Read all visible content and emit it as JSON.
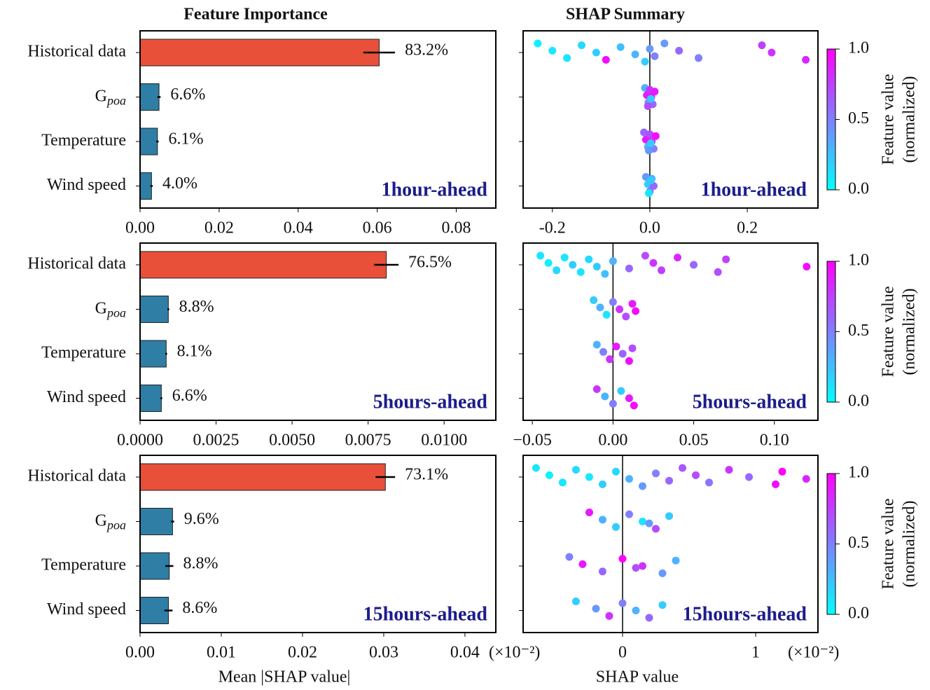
{
  "chart_data": [
    {
      "type": "bar",
      "title": "Feature Importance",
      "categories": [
        "Historical data",
        {
          "text": "G",
          "subscript": "poa"
        },
        "Temperature",
        "Wind speed"
      ],
      "values": [
        0.0605,
        0.0048,
        0.0044,
        0.0029
      ],
      "errors": [
        0.004,
        0.0004,
        0.0003,
        0.0003
      ],
      "share_labels": [
        "83.2%",
        "6.6%",
        "6.1%",
        "4.0%"
      ],
      "colors": [
        "#e8503a",
        "#2e7ea6",
        "#2e7ea6",
        "#2e7ea6"
      ],
      "xlim": [
        0,
        0.09
      ],
      "xticks": [
        {
          "value": 0,
          "label": "0.00"
        },
        0.02,
        0.04,
        0.06,
        0.08
      ],
      "annotation": "1hour-ahead"
    },
    {
      "type": "scatter",
      "title": "SHAP Summary",
      "groups": [
        {
          "x": [
            -0.23,
            -0.2,
            -0.17,
            -0.14,
            -0.11,
            -0.09,
            -0.06,
            -0.03,
            -0.01,
            0.0,
            0.01,
            0.03,
            0.06,
            0.1,
            0.23,
            0.25,
            0.32
          ],
          "feature_value": [
            0.05,
            0.1,
            0.1,
            0.15,
            0.2,
            0.95,
            0.25,
            0.3,
            0.2,
            0.4,
            0.5,
            0.4,
            0.6,
            0.5,
            0.75,
            0.8,
            0.85
          ]
        },
        {
          "x": [
            -0.01,
            -0.006,
            -0.003,
            0,
            0.003,
            0.006,
            0.01,
            0.002,
            -0.004
          ],
          "feature_value": [
            0.3,
            0.9,
            0.4,
            0.8,
            0.95,
            0.6,
            0.9,
            0.2,
            0.7
          ]
        },
        {
          "x": [
            -0.012,
            -0.008,
            -0.004,
            0,
            0.004,
            0.008,
            0.012,
            0.002,
            -0.002
          ],
          "feature_value": [
            0.6,
            0.9,
            0.3,
            0.7,
            0.8,
            0.5,
            0.95,
            0.2,
            0.4
          ]
        },
        {
          "x": [
            -0.008,
            -0.004,
            0,
            0.004,
            0.008,
            -0.002,
            0.002
          ],
          "feature_value": [
            0.4,
            0.2,
            0.5,
            0.3,
            0.6,
            0.1,
            0.2
          ]
        }
      ],
      "xlim": [
        -0.26,
        0.345
      ],
      "xticks": [
        -0.2,
        {
          "value": 0,
          "label": "0.0"
        },
        0.2
      ],
      "colorbar": {
        "lim": [
          0,
          1
        ],
        "ticks": [
          {
            "value": 0,
            "label": "0.0"
          },
          0.5,
          {
            "value": 1,
            "label": "1.0"
          }
        ],
        "label": [
          "Feature value",
          "(normalized)"
        ]
      },
      "annotation": "1hour-ahead"
    },
    {
      "type": "bar",
      "categories": [
        "Historical data",
        {
          "text": "G",
          "subscript": "poa"
        },
        "Temperature",
        "Wind speed"
      ],
      "values": [
        0.0081,
        0.00093,
        0.00086,
        0.0007
      ],
      "errors": [
        0.0004,
        3e-05,
        3e-05,
        3e-05
      ],
      "share_labels": [
        "76.5%",
        "8.8%",
        "8.1%",
        "6.6%"
      ],
      "colors": [
        "#e8503a",
        "#2e7ea6",
        "#2e7ea6",
        "#2e7ea6"
      ],
      "xlim": [
        0,
        0.0117
      ],
      "xticks": [
        {
          "value": 0,
          "label": "0.0000"
        },
        0.0025,
        {
          "value": 0.005,
          "label": "0.0050"
        },
        0.0075,
        {
          "value": 0.01,
          "label": "0.0100"
        }
      ],
      "annotation": "5hours-ahead"
    },
    {
      "type": "scatter",
      "groups": [
        {
          "x": [
            -0.045,
            -0.04,
            -0.035,
            -0.03,
            -0.025,
            -0.02,
            -0.015,
            -0.01,
            -0.005,
            0,
            0.01,
            0.02,
            0.025,
            0.03,
            0.04,
            0.05,
            0.065,
            0.07,
            0.12
          ],
          "feature_value": [
            0.1,
            0.05,
            0.15,
            0.1,
            0.2,
            0.1,
            0.15,
            0.2,
            0.25,
            0.3,
            0.6,
            0.7,
            0.8,
            0.75,
            0.85,
            0.6,
            0.7,
            0.75,
            0.95
          ]
        },
        {
          "x": [
            -0.012,
            -0.008,
            -0.004,
            0,
            0.004,
            0.008,
            0.012,
            0.014
          ],
          "feature_value": [
            0.2,
            0.3,
            0.1,
            0.5,
            0.8,
            0.7,
            0.9,
            0.95
          ]
        },
        {
          "x": [
            -0.01,
            -0.006,
            -0.002,
            0.002,
            0.006,
            0.01,
            0.012
          ],
          "feature_value": [
            0.3,
            0.5,
            0.8,
            0.9,
            0.6,
            0.95,
            0.7
          ]
        },
        {
          "x": [
            -0.01,
            -0.005,
            0,
            0.005,
            0.01,
            0.013
          ],
          "feature_value": [
            0.8,
            0.3,
            0.5,
            0.2,
            0.9,
            0.95
          ]
        }
      ],
      "xlim": [
        -0.0557,
        0.127
      ],
      "xticks": [
        {
          "value": -0.05,
          "label": "−0.05"
        },
        {
          "value": 0,
          "label": "0.00"
        },
        0.05,
        {
          "value": 0.1,
          "label": "0.10"
        }
      ],
      "colorbar": {
        "lim": [
          0,
          1
        ],
        "ticks": [
          {
            "value": 0,
            "label": "0.0"
          },
          0.5,
          {
            "value": 1,
            "label": "1.0"
          }
        ],
        "label": [
          "Feature value",
          "(normalized)"
        ]
      },
      "annotation": "5hours-ahead"
    },
    {
      "type": "bar",
      "xlabel": "Mean |SHAP value|",
      "x_offset_label": "(×10⁻²)",
      "categories": [
        "Historical data",
        {
          "text": "G",
          "subscript": "poa"
        },
        "Temperature",
        "Wind speed"
      ],
      "values": [
        0.0302,
        0.004,
        0.0036,
        0.0035
      ],
      "errors": [
        0.0012,
        0.0002,
        0.0005,
        0.0005
      ],
      "share_labels": [
        "73.1%",
        "9.6%",
        "8.8%",
        "8.6%"
      ],
      "colors": [
        "#e8503a",
        "#2e7ea6",
        "#2e7ea6",
        "#2e7ea6"
      ],
      "xlim": [
        0,
        0.0438
      ],
      "xticks": [
        {
          "value": 0,
          "label": "0.00"
        },
        0.01,
        0.02,
        0.03,
        0.04
      ],
      "annotation": "15hours-ahead"
    },
    {
      "type": "scatter",
      "xlabel": "SHAP value",
      "x_offset_label": "(×10⁻²)",
      "groups": [
        {
          "x": [
            -0.65,
            -0.55,
            -0.45,
            -0.35,
            -0.25,
            -0.15,
            -0.05,
            0.05,
            0.15,
            0.25,
            0.35,
            0.45,
            0.55,
            0.65,
            0.8,
            0.95,
            1.15,
            1.2,
            1.38
          ],
          "feature_value": [
            0.1,
            0.05,
            0.1,
            0.15,
            0.1,
            0.2,
            0.15,
            0.3,
            0.4,
            0.5,
            0.6,
            0.65,
            0.7,
            0.55,
            0.8,
            0.6,
            0.95,
            1.0,
            0.85
          ]
        },
        {
          "x": [
            -0.25,
            -0.15,
            -0.05,
            0.05,
            0.15,
            0.25,
            0.35,
            0.2
          ],
          "feature_value": [
            0.9,
            0.3,
            0.2,
            0.5,
            0.1,
            0.7,
            0.2,
            0.4
          ]
        },
        {
          "x": [
            -0.4,
            -0.3,
            -0.15,
            0,
            0.15,
            0.3,
            0.4,
            0.1
          ],
          "feature_value": [
            0.5,
            0.9,
            0.6,
            1.0,
            0.8,
            0.4,
            0.3,
            0.7
          ]
        },
        {
          "x": [
            -0.35,
            -0.2,
            -0.1,
            0,
            0.1,
            0.2,
            0.3
          ],
          "feature_value": [
            0.2,
            0.4,
            0.8,
            0.5,
            0.3,
            0.6,
            0.2
          ]
        }
      ],
      "xlim": [
        -0.747,
        1.468
      ],
      "xticks": [
        0,
        1
      ],
      "colorbar": {
        "lim": [
          0,
          1
        ],
        "ticks": [
          {
            "value": 0,
            "label": "0.0"
          },
          0.5,
          {
            "value": 1,
            "label": "1.0"
          }
        ],
        "label": [
          "Feature value",
          "(normalized)"
        ]
      },
      "annotation": "15hours-ahead"
    }
  ]
}
